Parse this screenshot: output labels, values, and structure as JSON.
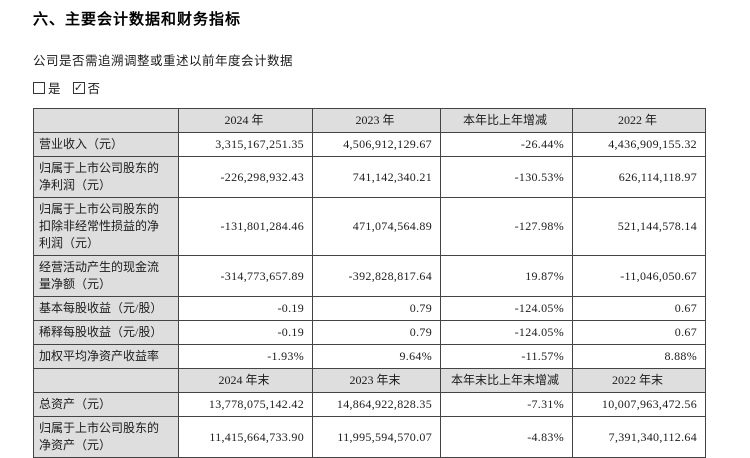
{
  "page": {
    "title": "六、主要会计数据和财务指标",
    "question": "公司是否需追溯调整或重述以前年度会计数据",
    "options": [
      {
        "label": "是",
        "checked": false,
        "mark": ""
      },
      {
        "label": "否",
        "checked": true,
        "mark": "✓"
      }
    ]
  },
  "colors": {
    "header_bg": "#dedede",
    "border": "#444444",
    "text": "#1b1b1b"
  },
  "table": {
    "header_annual": [
      "",
      "2024 年",
      "2023 年",
      "本年比上年增减",
      "2022 年"
    ],
    "rows_annual": [
      {
        "label": "营业收入（元）",
        "values": [
          "3,315,167,251.35",
          "4,506,912,129.67",
          "-26.44%",
          "4,436,909,155.32"
        ]
      },
      {
        "label": "归属于上市公司股东的净利润（元）",
        "values": [
          "-226,298,932.43",
          "741,142,340.21",
          "-130.53%",
          "626,114,118.97"
        ]
      },
      {
        "label": "归属于上市公司股东的扣除非经常性损益的净利润（元）",
        "values": [
          "-131,801,284.46",
          "471,074,564.89",
          "-127.98%",
          "521,144,578.14"
        ]
      },
      {
        "label": "经营活动产生的现金流量净额（元）",
        "values": [
          "-314,773,657.89",
          "-392,828,817.64",
          "19.87%",
          "-11,046,050.67"
        ]
      },
      {
        "label": "基本每股收益（元/股）",
        "values": [
          "-0.19",
          "0.79",
          "-124.05%",
          "0.67"
        ]
      },
      {
        "label": "稀释每股收益（元/股）",
        "values": [
          "-0.19",
          "0.79",
          "-124.05%",
          "0.67"
        ]
      },
      {
        "label": "加权平均净资产收益率",
        "values": [
          "-1.93%",
          "9.64%",
          "-11.57%",
          "8.88%"
        ]
      }
    ],
    "header_year_end": [
      "",
      "2024 年末",
      "2023 年末",
      "本年末比上年末增减",
      "2022 年末"
    ],
    "rows_year_end": [
      {
        "label": "总资产（元）",
        "values": [
          "13,778,075,142.42",
          "14,864,922,828.35",
          "-7.31%",
          "10,007,963,472.56"
        ]
      },
      {
        "label": "归属于上市公司股东的净资产（元）",
        "values": [
          "11,415,664,733.90",
          "11,995,594,570.07",
          "-4.83%",
          "7,391,340,112.64"
        ]
      }
    ]
  }
}
